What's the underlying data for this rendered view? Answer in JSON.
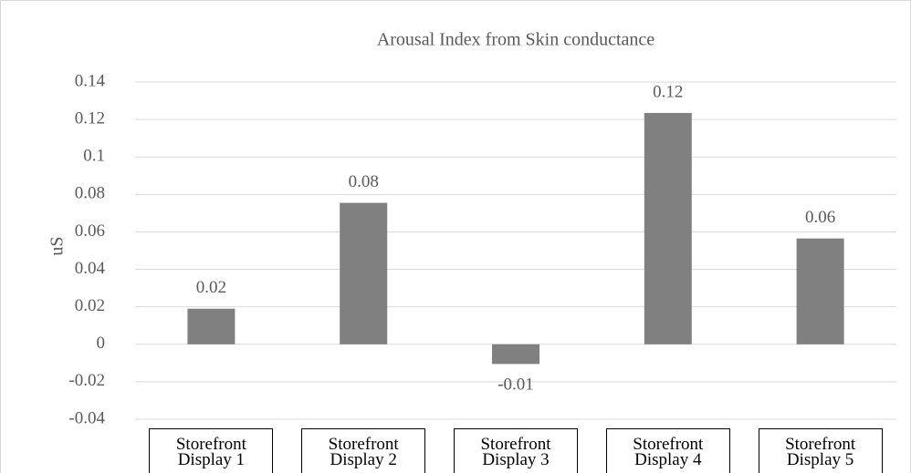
{
  "chart_data": {
    "type": "bar",
    "title": "Arousal Index from Skin conductance",
    "y_label": "uS",
    "categories": [
      "Storefront Display 1",
      "Storefront Display 2",
      "Storefront Display 3",
      "Storefront Display 4",
      "Storefront Display 5"
    ],
    "values": [
      0.019,
      0.0755,
      -0.0105,
      0.1235,
      0.0565
    ],
    "value_labels": [
      "0.02",
      "0.08",
      "-0.01",
      "0.12",
      "0.06"
    ],
    "color": "#808080",
    "ylim": [
      -0.04,
      0.14
    ],
    "yticks": [
      -0.04,
      -0.02,
      0,
      0.02,
      0.04,
      0.06,
      0.08,
      0.1,
      0.12,
      0.14
    ],
    "grid": true
  }
}
